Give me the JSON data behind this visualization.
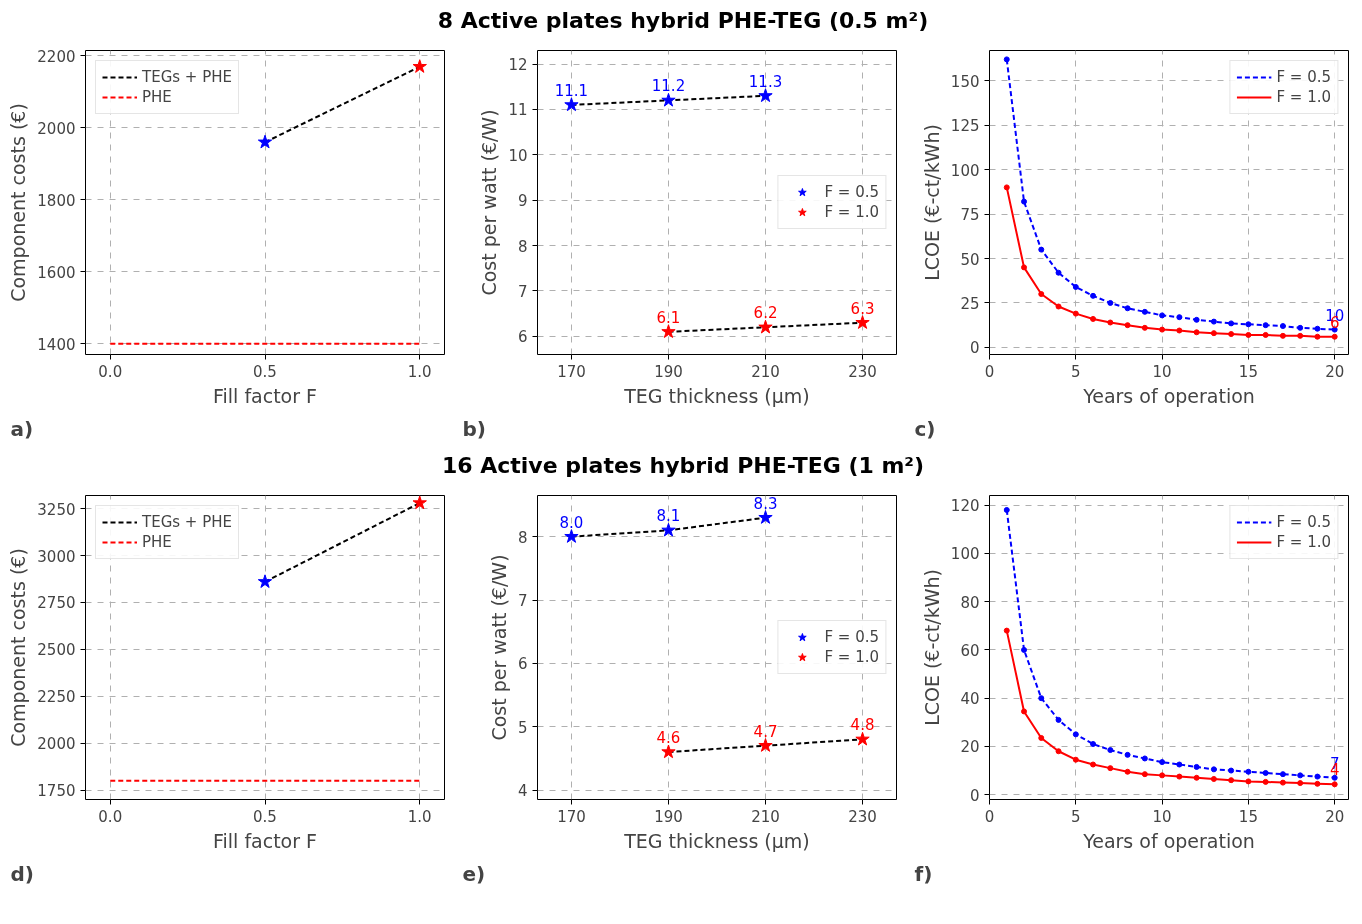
{
  "chart_data": [
    {
      "type": "line",
      "xlabel": "Fill factor F",
      "ylabel": "Component costs (€)",
      "annotations": [
        "a)"
      ],
      "xlim": [
        -0.08,
        1.08
      ],
      "ylim": [
        1370,
        2215
      ],
      "xticks": [
        {
          "value": 0,
          "label": "0.0"
        },
        {
          "value": 0.5,
          "label": "0.5"
        },
        {
          "value": 1,
          "label": "1.0"
        }
      ],
      "yticks": [
        1400,
        1600,
        1800,
        2000,
        2200
      ],
      "grid": true,
      "legend": "top left",
      "series": [
        {
          "name": "TEGs + PHE",
          "type": "line",
          "color": "#000000",
          "line_style": "dashed",
          "x": [
            0.5,
            1.0
          ],
          "values": [
            1960,
            2170
          ]
        },
        {
          "name": "PHE",
          "type": "line",
          "color": "#ff0000",
          "line_style": "dashed",
          "x": [
            0.0,
            1.0
          ],
          "values": [
            1400,
            1400
          ]
        },
        {
          "type": "scatter",
          "marker": "star",
          "colors": [
            "#0000ff",
            "#ff0000"
          ],
          "x": [
            0.5,
            1.0
          ],
          "values": [
            1960,
            2170
          ]
        }
      ]
    },
    {
      "type": "scatter",
      "title": "8 Active plates hybrid PHE-TEG (0.5 m²)",
      "xlabel": "TEG thickness (µm)",
      "ylabel": "Cost per watt (€/W)",
      "annotations": [
        "b)"
      ],
      "xlim": [
        163,
        237
      ],
      "ylim": [
        5.6,
        12.3
      ],
      "xticks": [
        170,
        190,
        210,
        230
      ],
      "yticks": [
        6,
        7,
        8,
        9,
        10,
        11,
        12
      ],
      "grid": true,
      "legend": "center right",
      "series": [
        {
          "type": "line",
          "color": "#000000",
          "line_style": "dashed",
          "x": [
            170,
            190,
            210
          ],
          "values": [
            11.1,
            11.2,
            11.3
          ]
        },
        {
          "type": "line",
          "color": "#000000",
          "line_style": "dashed",
          "x": [
            190,
            210,
            230
          ],
          "values": [
            6.1,
            6.2,
            6.3
          ]
        },
        {
          "name": "F = 0.5",
          "type": "scatter",
          "marker": "star",
          "color": "#0000ff",
          "x": [
            170,
            190,
            210
          ],
          "values": [
            11.1,
            11.2,
            11.3
          ],
          "value_labels": [
            "11.1",
            "11.2",
            "11.3"
          ]
        },
        {
          "name": "F = 1.0",
          "type": "scatter",
          "marker": "star",
          "color": "#ff0000",
          "x": [
            190,
            210,
            230
          ],
          "values": [
            6.1,
            6.2,
            6.3
          ],
          "value_labels": [
            "6.1",
            "6.2",
            "6.3"
          ]
        }
      ]
    },
    {
      "type": "line",
      "xlabel": "Years of operation",
      "ylabel": "LCOE (€-ct/kWh)",
      "annotations": [
        "c)"
      ],
      "xlim": [
        0,
        20.8
      ],
      "ylim": [
        -4,
        167
      ],
      "xticks": [
        0,
        5,
        10,
        15,
        20
      ],
      "yticks": [
        0,
        25,
        50,
        75,
        100,
        125,
        150
      ],
      "grid": true,
      "legend": "top right",
      "x": [
        1,
        2,
        3,
        4,
        5,
        6,
        7,
        8,
        9,
        10,
        11,
        12,
        13,
        14,
        15,
        16,
        17,
        18,
        19,
        20
      ],
      "series": [
        {
          "name": "F = 0.5",
          "color": "#0000ff",
          "line_style": "dashed",
          "marker": "circle",
          "values": [
            162,
            82,
            55,
            42,
            34,
            29,
            25,
            22,
            20,
            18,
            17,
            15.5,
            14.5,
            13.5,
            13,
            12.5,
            12,
            11,
            10.5,
            10
          ],
          "value_labels": [
            null,
            null,
            null,
            null,
            null,
            null,
            null,
            null,
            null,
            null,
            null,
            null,
            null,
            null,
            null,
            null,
            null,
            null,
            null,
            "10"
          ]
        },
        {
          "name": "F = 1.0",
          "color": "#ff0000",
          "line_style": "solid",
          "marker": "circle",
          "values": [
            90,
            45,
            30,
            23,
            19,
            16,
            14,
            12.5,
            11,
            10,
            9.5,
            8.5,
            8,
            7.5,
            7,
            7,
            6.5,
            6.5,
            6,
            6
          ],
          "value_labels": [
            null,
            null,
            null,
            null,
            null,
            null,
            null,
            null,
            null,
            null,
            null,
            null,
            null,
            null,
            null,
            null,
            null,
            null,
            null,
            "6"
          ]
        }
      ]
    },
    {
      "type": "line",
      "xlabel": "Fill factor F",
      "ylabel": "Component costs (€)",
      "annotations": [
        "d)"
      ],
      "xlim": [
        -0.08,
        1.08
      ],
      "ylim": [
        1700,
        3320
      ],
      "xticks": [
        {
          "value": 0,
          "label": "0.0"
        },
        {
          "value": 0.5,
          "label": "0.5"
        },
        {
          "value": 1,
          "label": "1.0"
        }
      ],
      "yticks": [
        1750,
        2000,
        2250,
        2500,
        2750,
        3000,
        3250
      ],
      "grid": true,
      "legend": "top left",
      "series": [
        {
          "name": "TEGs + PHE",
          "type": "line",
          "color": "#000000",
          "line_style": "dashed",
          "x": [
            0.5,
            1.0
          ],
          "values": [
            2860,
            3280
          ]
        },
        {
          "name": "PHE",
          "type": "line",
          "color": "#ff0000",
          "line_style": "dashed",
          "x": [
            0.0,
            1.0
          ],
          "values": [
            1800,
            1800
          ]
        },
        {
          "type": "scatter",
          "marker": "star",
          "colors": [
            "#0000ff",
            "#ff0000"
          ],
          "x": [
            0.5,
            1.0
          ],
          "values": [
            2860,
            3280
          ]
        }
      ]
    },
    {
      "type": "scatter",
      "title": "16 Active plates hybrid PHE-TEG (1 m²)",
      "xlabel": "TEG thickness (µm)",
      "ylabel": "Cost per watt (€/W)",
      "annotations": [
        "e)"
      ],
      "xlim": [
        163,
        237
      ],
      "ylim": [
        3.85,
        8.65
      ],
      "xticks": [
        170,
        190,
        210,
        230
      ],
      "yticks": [
        4,
        5,
        6,
        7,
        8
      ],
      "grid": true,
      "legend": "center right",
      "series": [
        {
          "type": "line",
          "color": "#000000",
          "line_style": "dashed",
          "x": [
            170,
            190,
            210
          ],
          "values": [
            8.0,
            8.1,
            8.3
          ]
        },
        {
          "type": "line",
          "color": "#000000",
          "line_style": "dashed",
          "x": [
            190,
            210,
            230
          ],
          "values": [
            4.6,
            4.7,
            4.8
          ]
        },
        {
          "name": "F = 0.5",
          "type": "scatter",
          "marker": "star",
          "color": "#0000ff",
          "x": [
            170,
            190,
            210
          ],
          "values": [
            8.0,
            8.1,
            8.3
          ],
          "value_labels": [
            "8.0",
            "8.1",
            "8.3"
          ]
        },
        {
          "name": "F = 1.0",
          "type": "scatter",
          "marker": "star",
          "color": "#ff0000",
          "x": [
            190,
            210,
            230
          ],
          "values": [
            4.6,
            4.7,
            4.8
          ],
          "value_labels": [
            "4.6",
            "4.7",
            "4.8"
          ]
        }
      ]
    },
    {
      "type": "line",
      "xlabel": "Years of operation",
      "ylabel": "LCOE (€-ct/kWh)",
      "annotations": [
        "f)"
      ],
      "xlim": [
        0,
        20.8
      ],
      "ylim": [
        -2,
        124
      ],
      "xticks": [
        0,
        5,
        10,
        15,
        20
      ],
      "yticks": [
        0,
        20,
        40,
        60,
        80,
        100,
        120
      ],
      "grid": true,
      "legend": "top right",
      "x": [
        1,
        2,
        3,
        4,
        5,
        6,
        7,
        8,
        9,
        10,
        11,
        12,
        13,
        14,
        15,
        16,
        17,
        18,
        19,
        20
      ],
      "series": [
        {
          "name": "F = 0.5",
          "color": "#0000ff",
          "line_style": "dashed",
          "marker": "circle",
          "values": [
            118,
            60,
            40,
            31,
            25,
            21,
            18.5,
            16.5,
            15,
            13.5,
            12.5,
            11.5,
            10.5,
            10,
            9.5,
            9,
            8.5,
            8,
            7.5,
            7
          ],
          "value_labels": [
            null,
            null,
            null,
            null,
            null,
            null,
            null,
            null,
            null,
            null,
            null,
            null,
            null,
            null,
            null,
            null,
            null,
            null,
            null,
            "7"
          ]
        },
        {
          "name": "F = 1.0",
          "color": "#ff0000",
          "line_style": "solid",
          "marker": "circle",
          "values": [
            68,
            34.5,
            23.5,
            18,
            14.5,
            12.5,
            11,
            9.5,
            8.5,
            8,
            7.5,
            7,
            6.5,
            6,
            5.5,
            5.3,
            5,
            4.8,
            4.5,
            4.3
          ],
          "value_labels": [
            null,
            null,
            null,
            null,
            null,
            null,
            null,
            null,
            null,
            null,
            null,
            null,
            null,
            null,
            null,
            null,
            null,
            null,
            null,
            "4"
          ]
        }
      ]
    }
  ]
}
